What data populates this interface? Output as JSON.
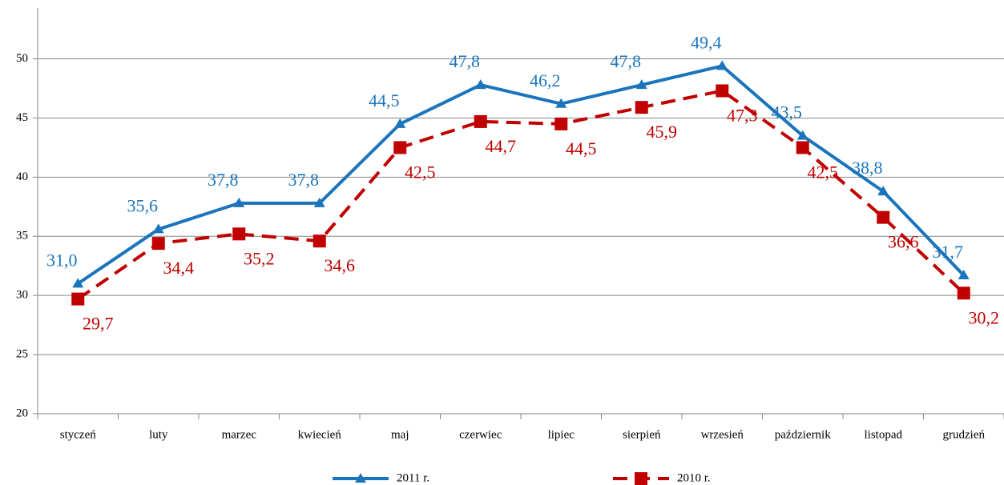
{
  "chart_data": {
    "type": "line",
    "categories": [
      "styczeń",
      "luty",
      "marzec",
      "kwiecień",
      "maj",
      "czerwiec",
      "lipiec",
      "sierpień",
      "wrzesień",
      "październik",
      "listopad",
      "grudzień"
    ],
    "series": [
      {
        "name": "2011 r.",
        "color": "#1a75bc",
        "marker": "triangle",
        "line_style": "solid",
        "values": [
          31.0,
          35.6,
          37.8,
          37.8,
          44.5,
          47.8,
          46.2,
          47.8,
          49.4,
          43.5,
          38.8,
          31.7
        ],
        "value_labels": [
          "31,0",
          "35,6",
          "37,8",
          "37,8",
          "44,5",
          "47,8",
          "46,2",
          "47,8",
          "49,4",
          "43,5",
          "38,8",
          "31,7"
        ]
      },
      {
        "name": "2010 r.",
        "color": "#c00000",
        "marker": "square",
        "line_style": "dashed",
        "values": [
          29.7,
          34.4,
          35.2,
          34.6,
          42.5,
          44.7,
          44.5,
          45.9,
          47.3,
          42.5,
          36.6,
          30.2
        ],
        "value_labels": [
          "29,7",
          "34,4",
          "35,2",
          "34,6",
          "42,5",
          "44,7",
          "44,5",
          "45,9",
          "47,3",
          "42,5",
          "36,6",
          "30,2"
        ]
      }
    ],
    "ylim": [
      20,
      54.3
    ],
    "yticks": [
      20,
      25,
      30,
      35,
      40,
      45,
      50
    ],
    "grid": true,
    "legend": "bottom"
  }
}
